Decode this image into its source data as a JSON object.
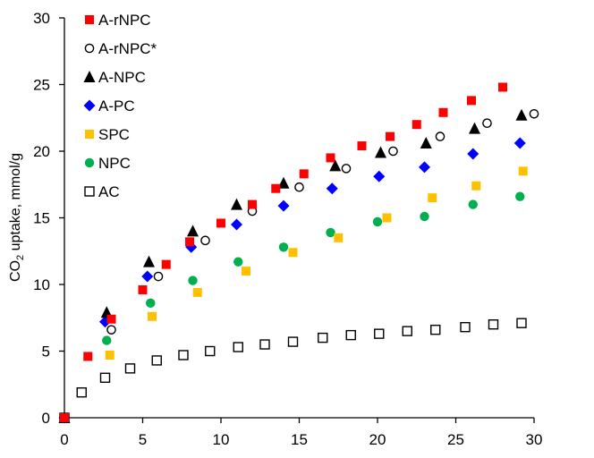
{
  "chart_data": {
    "type": "scatter",
    "title": "",
    "xlabel": "",
    "ylabel": {
      "prefix": "CO",
      "subscript": "2",
      "suffix": " uptake, mmol/g"
    },
    "xlim": [
      0,
      30
    ],
    "ylim": [
      0,
      30
    ],
    "xticks": [
      0,
      5,
      10,
      15,
      20,
      25,
      30
    ],
    "yticks": [
      0,
      5,
      10,
      15,
      20,
      25,
      30
    ],
    "grid": false,
    "legend_position": "top-left",
    "series": [
      {
        "name": "A-rNPC",
        "marker": "square",
        "color": "#ff0000",
        "filled": true,
        "x": [
          0,
          1.5,
          3,
          5,
          6.5,
          8,
          10,
          12,
          13.5,
          15.3,
          17,
          19,
          20.8,
          22.5,
          24.2,
          26,
          28
        ],
        "y": [
          0,
          4.6,
          7.4,
          9.6,
          11.5,
          13.2,
          14.6,
          16.0,
          17.2,
          18.3,
          19.5,
          20.4,
          21.1,
          22.0,
          22.9,
          23.8,
          24.8
        ]
      },
      {
        "name": "A-rNPC*",
        "marker": "circle",
        "color": "#000000",
        "filled": false,
        "x": [
          0,
          3.0,
          6.0,
          9.0,
          12.0,
          15.0,
          18.0,
          21.0,
          24.0,
          27.0,
          30.0
        ],
        "y": [
          0,
          6.6,
          10.6,
          13.3,
          15.5,
          17.3,
          18.7,
          20.0,
          21.1,
          22.1,
          22.8
        ]
      },
      {
        "name": "A-NPC",
        "marker": "triangle",
        "color": "#000000",
        "filled": true,
        "x": [
          0,
          2.7,
          5.4,
          8.2,
          11.0,
          14.0,
          17.3,
          20.2,
          23.1,
          26.2,
          29.2
        ],
        "y": [
          0,
          7.9,
          11.7,
          14.0,
          16.0,
          17.6,
          18.9,
          19.9,
          20.6,
          21.7,
          22.7
        ]
      },
      {
        "name": "A-PC",
        "marker": "diamond",
        "color": "#0000ff",
        "filled": true,
        "x": [
          0,
          2.6,
          5.3,
          8.1,
          11.0,
          14.0,
          17.1,
          20.1,
          23.0,
          26.1,
          29.1
        ],
        "y": [
          0,
          7.2,
          10.6,
          12.8,
          14.5,
          15.9,
          17.2,
          18.1,
          18.8,
          19.8,
          20.6
        ]
      },
      {
        "name": "SPC",
        "marker": "square",
        "color": "#ffc000",
        "filled": true,
        "x": [
          0,
          2.9,
          5.6,
          8.5,
          11.6,
          14.6,
          17.5,
          20.6,
          23.5,
          26.3,
          29.3
        ],
        "y": [
          0,
          4.7,
          7.6,
          9.4,
          11.0,
          12.4,
          13.5,
          15.0,
          16.5,
          17.4,
          18.5
        ]
      },
      {
        "name": "NPC",
        "marker": "circle",
        "color": "#00b050",
        "filled": true,
        "x": [
          0,
          2.7,
          5.5,
          8.2,
          11.1,
          14.0,
          17.0,
          20.0,
          23.0,
          26.1,
          29.1
        ],
        "y": [
          0,
          5.8,
          8.6,
          10.3,
          11.7,
          12.8,
          13.9,
          14.7,
          15.1,
          16.0,
          16.6
        ]
      },
      {
        "name": "AC",
        "marker": "square",
        "color": "#000000",
        "filled": false,
        "x": [
          0,
          1.1,
          2.6,
          4.2,
          5.9,
          7.6,
          9.3,
          11.1,
          12.8,
          14.6,
          16.5,
          18.3,
          20.1,
          21.9,
          23.7,
          25.6,
          27.4,
          29.2
        ],
        "y": [
          0,
          1.9,
          3.0,
          3.7,
          4.3,
          4.7,
          5.0,
          5.3,
          5.5,
          5.7,
          6.0,
          6.2,
          6.3,
          6.5,
          6.6,
          6.8,
          7.0,
          7.1
        ]
      }
    ]
  }
}
